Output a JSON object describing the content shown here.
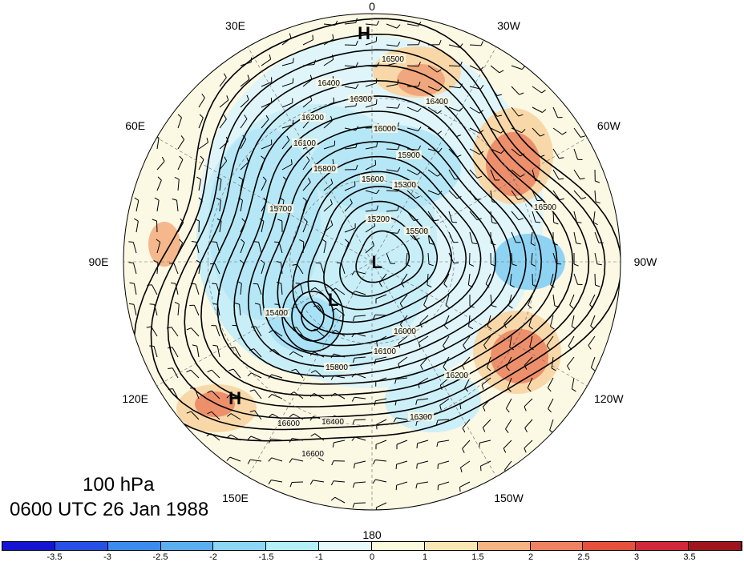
{
  "map": {
    "projection": "north-polar-stereographic",
    "longitude_labels": [
      {
        "text": "0",
        "lon": 0
      },
      {
        "text": "30W",
        "lon": -30
      },
      {
        "text": "60W",
        "lon": -60
      },
      {
        "text": "90W",
        "lon": -90
      },
      {
        "text": "120W",
        "lon": -120
      },
      {
        "text": "150W",
        "lon": -150
      },
      {
        "text": "180",
        "lon": 180
      },
      {
        "text": "150E",
        "lon": 150
      },
      {
        "text": "120E",
        "lon": 120
      },
      {
        "text": "90E",
        "lon": 90
      },
      {
        "text": "60E",
        "lon": 60
      },
      {
        "text": "30E",
        "lon": 30
      }
    ],
    "pressure_centers": [
      {
        "label": "H",
        "type": "high",
        "lon": 2,
        "colat_frac": 0.92
      },
      {
        "label": "H",
        "type": "high",
        "lon": 135,
        "colat_frac": 0.78
      },
      {
        "label": "L",
        "type": "low",
        "lon": -95,
        "colat_frac": 0.02
      },
      {
        "label": "L",
        "type": "low",
        "lon": 135,
        "colat_frac": 0.22
      }
    ],
    "contour_labels": [
      "16500",
      "16400",
      "16300",
      "16200",
      "16100",
      "16000",
      "15900",
      "15800",
      "15700",
      "15600",
      "15500",
      "15400",
      "15300",
      "15200",
      "16600",
      "16600",
      "16400",
      "16300",
      "16200",
      "16100",
      "16000",
      "15800",
      "16500",
      "16400"
    ],
    "contour_levels": [
      15200,
      15300,
      15400,
      15500,
      15600,
      15700,
      15800,
      15900,
      16000,
      16100,
      16200,
      16300,
      16400,
      16500,
      16600
    ]
  },
  "title": {
    "level": "100 hPa",
    "datetime": "0600 UTC 26 Jan 1988"
  },
  "colorbar": {
    "ticks": [
      "-3.5",
      "-3",
      "-2.5",
      "-2",
      "-1.5",
      "-1",
      "0",
      "1",
      "1.5",
      "2",
      "2.5",
      "3",
      "3.5"
    ],
    "colors": [
      "#1414d2",
      "#2850e6",
      "#3c8cf0",
      "#5aaff0",
      "#8cd7f5",
      "#b4f0fa",
      "#e6fafa",
      "#fafadc",
      "#fae6b4",
      "#f5b482",
      "#f08264",
      "#e6503c",
      "#d2283c",
      "#a0141e"
    ]
  }
}
